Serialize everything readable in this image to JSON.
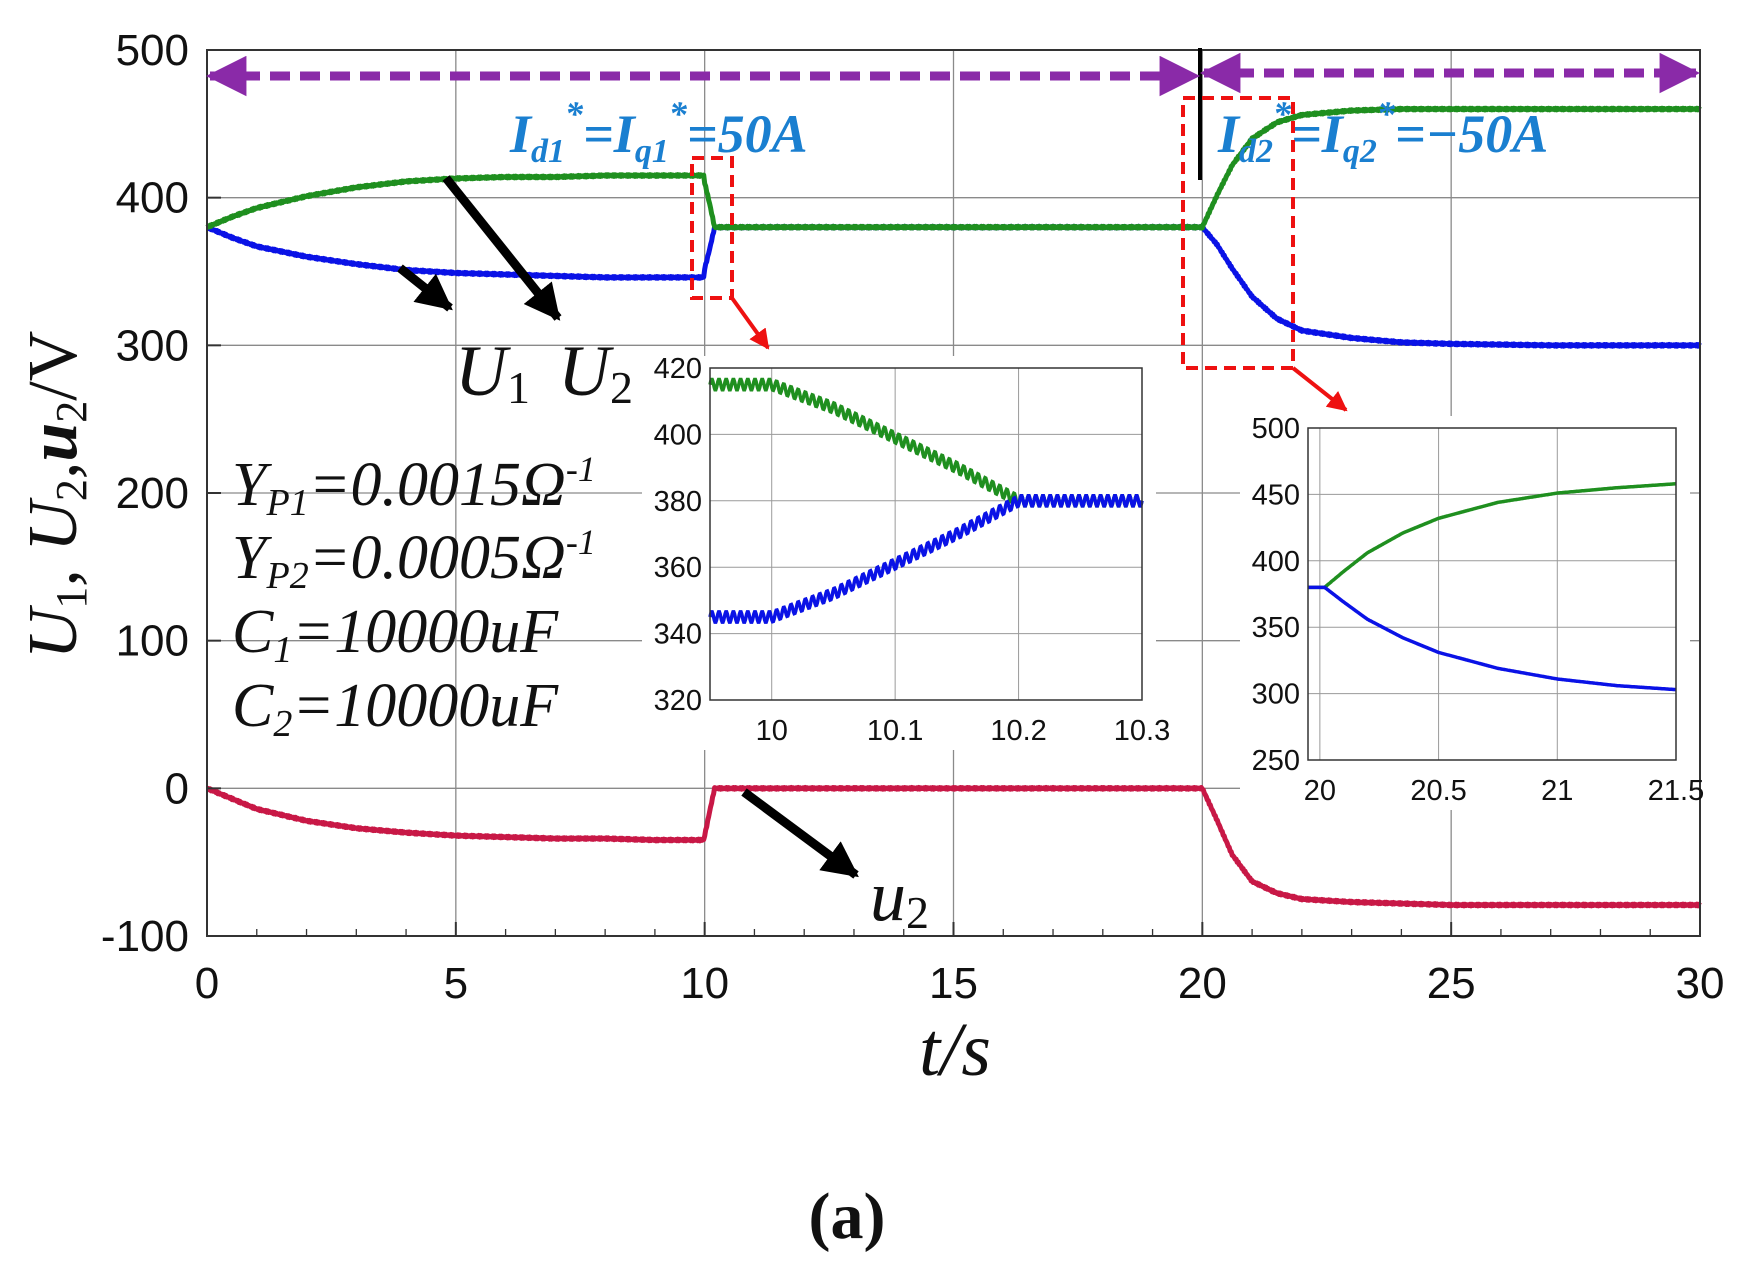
{
  "chart_data": {
    "type": "line",
    "title": "",
    "caption": "(a)",
    "xlabel": "t/s",
    "ylabel": "U1, U2, u2/V",
    "xlim": [
      0,
      30
    ],
    "ylim": [
      -100,
      500
    ],
    "x_ticks": [
      0,
      5,
      10,
      15,
      20,
      25,
      30
    ],
    "y_ticks": [
      -100,
      0,
      100,
      200,
      300,
      400,
      500
    ],
    "grid": true,
    "series": [
      {
        "name": "U1",
        "color": "#0a12e6",
        "points": [
          [
            0,
            380
          ],
          [
            0.5,
            373
          ],
          [
            1,
            367
          ],
          [
            2,
            360
          ],
          [
            3,
            355
          ],
          [
            4,
            351
          ],
          [
            5,
            349
          ],
          [
            6,
            348
          ],
          [
            7,
            347
          ],
          [
            8,
            346
          ],
          [
            9,
            346
          ],
          [
            9.98,
            346
          ],
          [
            10,
            352
          ],
          [
            10.1,
            365
          ],
          [
            10.2,
            380
          ],
          [
            12,
            380
          ],
          [
            15,
            380
          ],
          [
            19.98,
            380
          ],
          [
            20,
            380
          ],
          [
            20.3,
            368
          ],
          [
            20.6,
            352
          ],
          [
            21,
            333
          ],
          [
            21.5,
            318
          ],
          [
            22,
            310
          ],
          [
            23,
            305
          ],
          [
            24,
            302
          ],
          [
            25,
            301
          ],
          [
            27,
            300
          ],
          [
            30,
            300
          ]
        ]
      },
      {
        "name": "U2",
        "color": "#1f8f1f",
        "points": [
          [
            0,
            380
          ],
          [
            0.5,
            387
          ],
          [
            1,
            393
          ],
          [
            2,
            401
          ],
          [
            3,
            407
          ],
          [
            4,
            411
          ],
          [
            5,
            413
          ],
          [
            6,
            414
          ],
          [
            7,
            414
          ],
          [
            8,
            415
          ],
          [
            9,
            415
          ],
          [
            9.98,
            415
          ],
          [
            10,
            410
          ],
          [
            10.1,
            396
          ],
          [
            10.2,
            380
          ],
          [
            12,
            380
          ],
          [
            15,
            380
          ],
          [
            19.98,
            380
          ],
          [
            20,
            380
          ],
          [
            20.3,
            402
          ],
          [
            20.6,
            422
          ],
          [
            21,
            440
          ],
          [
            21.5,
            451
          ],
          [
            22,
            456
          ],
          [
            23,
            459
          ],
          [
            24,
            460
          ],
          [
            25,
            460
          ],
          [
            27,
            460
          ],
          [
            30,
            460
          ]
        ]
      },
      {
        "name": "u2",
        "color": "#c81846",
        "points": [
          [
            0,
            0
          ],
          [
            0.5,
            -7
          ],
          [
            1,
            -14
          ],
          [
            2,
            -22
          ],
          [
            3,
            -27
          ],
          [
            4,
            -30
          ],
          [
            5,
            -32
          ],
          [
            6,
            -33
          ],
          [
            7,
            -34
          ],
          [
            8,
            -34
          ],
          [
            9,
            -35
          ],
          [
            9.98,
            -35
          ],
          [
            10.2,
            0
          ],
          [
            12,
            0
          ],
          [
            15,
            0
          ],
          [
            19.98,
            0
          ],
          [
            20,
            0
          ],
          [
            20.3,
            -22
          ],
          [
            20.6,
            -45
          ],
          [
            21,
            -63
          ],
          [
            21.5,
            -71
          ],
          [
            22,
            -75
          ],
          [
            23,
            -77
          ],
          [
            24,
            -78
          ],
          [
            25,
            -79
          ],
          [
            27,
            -79
          ],
          [
            30,
            -79
          ]
        ]
      }
    ],
    "insets": [
      {
        "name": "zoom-10s",
        "xlim": [
          9.95,
          10.3
        ],
        "ylim": [
          320,
          420
        ],
        "x_ticks": [
          "10",
          "10.1",
          "10.2",
          "10.3"
        ],
        "x_tick_values": [
          10,
          10.1,
          10.2,
          10.3
        ],
        "y_ticks": [
          "320",
          "340",
          "360",
          "380",
          "400",
          "420"
        ],
        "y_tick_values": [
          320,
          340,
          360,
          380,
          400,
          420
        ],
        "series": [
          {
            "name": "U2",
            "color": "#1f8f1f",
            "ripple": 1.6,
            "points": [
              [
                9.95,
                415
              ],
              [
                10,
                415
              ],
              [
                10.05,
                408
              ],
              [
                10.1,
                399
              ],
              [
                10.15,
                390
              ],
              [
                10.2,
                380
              ],
              [
                10.3,
                380
              ]
            ]
          },
          {
            "name": "U1",
            "color": "#0a12e6",
            "ripple": 1.6,
            "points": [
              [
                9.95,
                345
              ],
              [
                10,
                345
              ],
              [
                10.05,
                352
              ],
              [
                10.1,
                361
              ],
              [
                10.15,
                370
              ],
              [
                10.2,
                380
              ],
              [
                10.3,
                380
              ]
            ]
          }
        ]
      },
      {
        "name": "zoom-20s",
        "xlim": [
          19.95,
          21.5
        ],
        "ylim": [
          250,
          500
        ],
        "x_ticks": [
          "20",
          "20.5",
          "21",
          "21.5"
        ],
        "x_tick_values": [
          20,
          20.5,
          21,
          21.5
        ],
        "y_ticks": [
          "250",
          "300",
          "350",
          "400",
          "450",
          "500"
        ],
        "y_tick_values": [
          250,
          300,
          350,
          400,
          450,
          500
        ],
        "series": [
          {
            "name": "U2",
            "color": "#1f8f1f",
            "ripple": 0,
            "points": [
              [
                19.95,
                380
              ],
              [
                20.02,
                380
              ],
              [
                20.1,
                392
              ],
              [
                20.2,
                406
              ],
              [
                20.35,
                421
              ],
              [
                20.5,
                432
              ],
              [
                20.75,
                444
              ],
              [
                21,
                451
              ],
              [
                21.25,
                455
              ],
              [
                21.5,
                458
              ]
            ]
          },
          {
            "name": "U1",
            "color": "#0a12e6",
            "ripple": 0,
            "points": [
              [
                19.95,
                380
              ],
              [
                20.02,
                380
              ],
              [
                20.1,
                369
              ],
              [
                20.2,
                356
              ],
              [
                20.35,
                342
              ],
              [
                20.5,
                331
              ],
              [
                20.75,
                319
              ],
              [
                21,
                311
              ],
              [
                21.25,
                306
              ],
              [
                21.5,
                303
              ]
            ]
          }
        ]
      }
    ],
    "annotations": {
      "label_U1": "U",
      "label_U1_sub": "1",
      "label_U2": "U",
      "label_U2_sub": "2",
      "label_u2": "u",
      "label_u2_sub": "2",
      "param_lines": [
        {
          "main": "Y",
          "sub": "P1",
          "rest": "=0.0015Ω",
          "sup": "-1"
        },
        {
          "main": "Y",
          "sub": "P2",
          "rest": "=0.0005Ω",
          "sup": "-1"
        },
        {
          "main": "C",
          "sub": "1",
          "rest": "=10000uF",
          "sup": ""
        },
        {
          "main": "C",
          "sub": "2",
          "rest": "=10000uF",
          "sup": ""
        }
      ],
      "phase1": {
        "a": "I",
        "a_sub": "d1",
        "star1": "*",
        "eq": "=I",
        "b_sub": "q1",
        "star2": "*",
        "rest": "=50A"
      },
      "phase2": {
        "a": "I",
        "a_sub": "d2",
        "star1": "*",
        "eq": "=I",
        "b_sub": "q2",
        "star2": "*",
        "rest": "=−50A"
      },
      "ylabel_parts": {
        "a": "U",
        "a_sub": "1",
        "sep1": ", ",
        "b": "U",
        "b_sub": "2",
        "sep2": ",",
        "c": "u",
        "c_sub": "2",
        "unit": "/V"
      }
    },
    "colors": {
      "phase_arrow": "#8a2aa8",
      "zoom_box": "#ee1111",
      "phase_label": "#1a7fd0",
      "pointer": "#000000"
    }
  }
}
